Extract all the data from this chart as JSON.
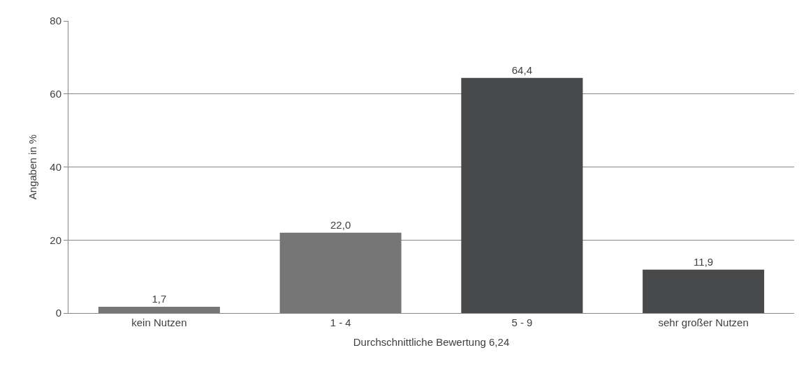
{
  "chart_data": {
    "type": "bar",
    "xlabel": "Durchschnittliche Bewertung 6,24",
    "ylabel": "Angaben in %",
    "categories": [
      "kein Nutzen",
      "1 - 4",
      "5 - 9",
      "sehr großer Nutzen"
    ],
    "values": [
      1.7,
      22.0,
      64.4,
      11.9
    ],
    "value_labels": [
      "1,7",
      "22,0",
      "64,4",
      "11,9"
    ],
    "colors": [
      "#767676",
      "#767676",
      "#48494b",
      "#48494b"
    ],
    "ylim": [
      0,
      80
    ],
    "yticks": [
      0,
      20,
      40,
      60,
      80
    ],
    "grid": "y"
  }
}
